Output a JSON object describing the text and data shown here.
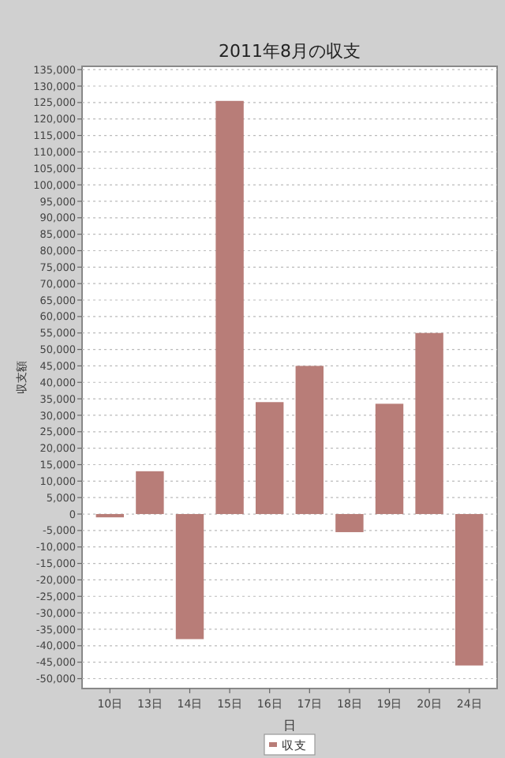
{
  "chart_data": {
    "type": "bar",
    "title": "2011年8月の収支",
    "xlabel": "日",
    "ylabel": "収支額",
    "categories": [
      "10日",
      "13日",
      "14日",
      "15日",
      "16日",
      "17日",
      "18日",
      "19日",
      "20日",
      "24日"
    ],
    "series": [
      {
        "name": "収支",
        "color": "#b87d78",
        "values": [
          -1000,
          13000,
          -38000,
          125500,
          34000,
          45000,
          -5500,
          33500,
          55000,
          -46000
        ]
      }
    ],
    "ylim": [
      -53000,
      136000
    ],
    "yticks": [
      {
        "value": -50000,
        "label": "-50,000"
      },
      {
        "value": -45000,
        "label": "-45,000"
      },
      {
        "value": -40000,
        "label": "-40,000"
      },
      {
        "value": -35000,
        "label": "-35,000"
      },
      {
        "value": -30000,
        "label": "-30,000"
      },
      {
        "value": -25000,
        "label": "-25,000"
      },
      {
        "value": -20000,
        "label": "-20,000"
      },
      {
        "value": -15000,
        "label": "-15,000"
      },
      {
        "value": -10000,
        "label": "-10,000"
      },
      {
        "value": -5000,
        "label": "-5,000"
      },
      0,
      {
        "value": 5000,
        "label": "5,000"
      },
      {
        "value": 10000,
        "label": "10,000"
      },
      {
        "value": 15000,
        "label": "15,000"
      },
      {
        "value": 20000,
        "label": "20,000"
      },
      {
        "value": 25000,
        "label": "25,000"
      },
      {
        "value": 30000,
        "label": "30,000"
      },
      {
        "value": 35000,
        "label": "35,000"
      },
      {
        "value": 40000,
        "label": "40,000"
      },
      {
        "value": 45000,
        "label": "45,000"
      },
      {
        "value": 50000,
        "label": "50,000"
      },
      {
        "value": 55000,
        "label": "55,000"
      },
      {
        "value": 60000,
        "label": "60,000"
      },
      {
        "value": 65000,
        "label": "65,000"
      },
      {
        "value": 70000,
        "label": "70,000"
      },
      {
        "value": 75000,
        "label": "75,000"
      },
      {
        "value": 80000,
        "label": "80,000"
      },
      {
        "value": 85000,
        "label": "85,000"
      },
      {
        "value": 90000,
        "label": "90,000"
      },
      {
        "value": 95000,
        "label": "95,000"
      },
      {
        "value": 100000,
        "label": "100,000"
      },
      {
        "value": 105000,
        "label": "105,000"
      },
      {
        "value": 110000,
        "label": "110,000"
      },
      {
        "value": 115000,
        "label": "115,000"
      },
      {
        "value": 120000,
        "label": "120,000"
      },
      {
        "value": 125000,
        "label": "125,000"
      },
      {
        "value": 130000,
        "label": "130,000"
      },
      {
        "value": 135000,
        "label": "135,000"
      }
    ],
    "grid": "y",
    "legend": "bottom"
  }
}
